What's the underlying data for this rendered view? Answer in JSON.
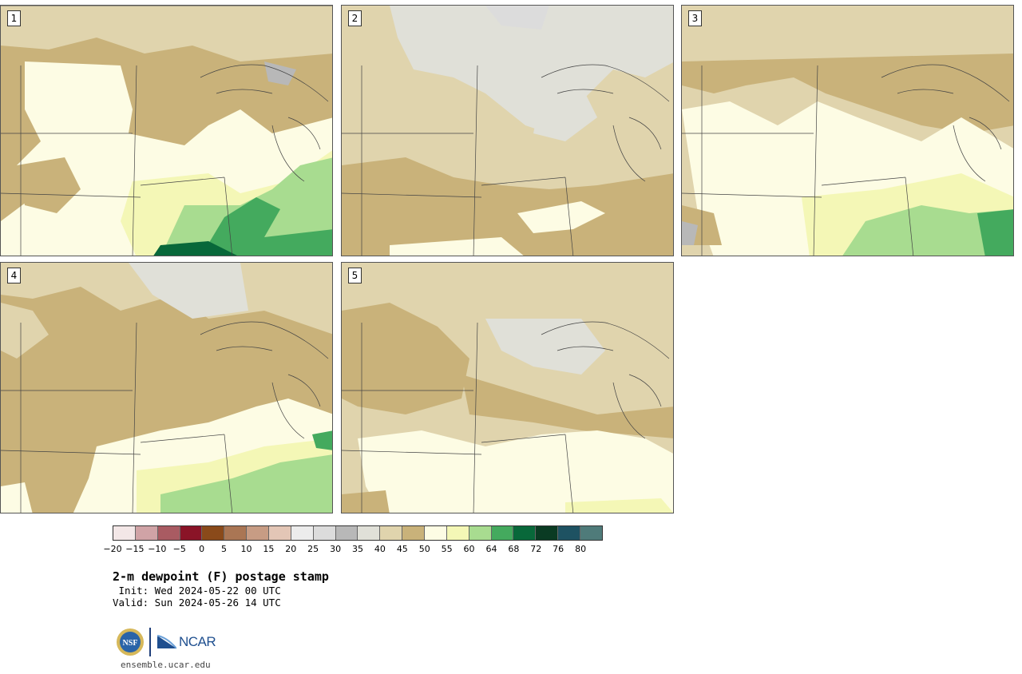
{
  "panels": [
    {
      "label": "1"
    },
    {
      "label": "2"
    },
    {
      "label": "3"
    },
    {
      "label": "4"
    },
    {
      "label": "5"
    }
  ],
  "legend": {
    "colors": [
      "#f3e7e7",
      "#d0a3a6",
      "#a95b62",
      "#8a1427",
      "#8a4a1a",
      "#aa7654",
      "#c79c84",
      "#e3c6b6",
      "#ececec",
      "#dcdcdc",
      "#b8b8b8",
      "#e0e0d8",
      "#e0d4ad",
      "#c9b27a",
      "#fdfce4",
      "#f4f7b6",
      "#a8dc90",
      "#44aa5e",
      "#08683a",
      "#0a3b23",
      "#1e5262",
      "#4f7b7a"
    ],
    "ticks": [
      "−20",
      "−15",
      "−10",
      "−5",
      "0",
      "5",
      "10",
      "15",
      "20",
      "25",
      "30",
      "35",
      "40",
      "45",
      "50",
      "55",
      "60",
      "64",
      "68",
      "72",
      "76",
      "80"
    ]
  },
  "title": {
    "main": "2-m dewpoint (F) postage stamp",
    "init": " Init: Wed 2024-05-22 00 UTC",
    "valid": "Valid: Sun 2024-05-26 14 UTC"
  },
  "logos": {
    "nsf": "NSF",
    "ncar": "NCAR",
    "url": "ensemble.ucar.edu"
  }
}
